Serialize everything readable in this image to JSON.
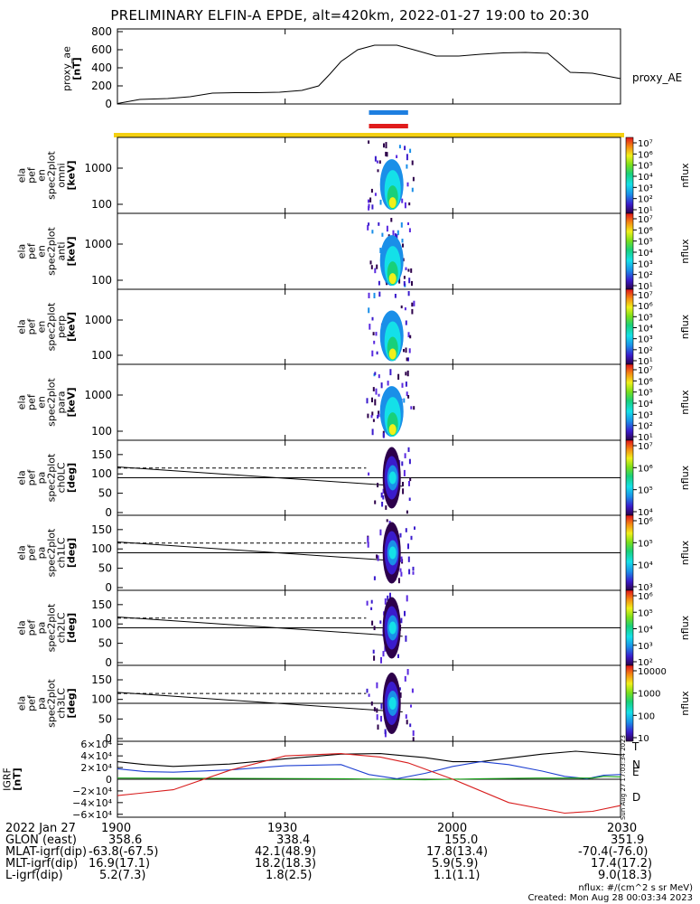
{
  "title": "PRELIMINARY ELFIN-A EPDE, alt=420km, 2022-01-27 19:00 to 20:30",
  "ae_panel": {
    "ylabel": [
      "proxy_ae",
      "[nT]"
    ],
    "yticks": [
      "800",
      "600",
      "400",
      "200",
      "0"
    ],
    "legend": "proxy_AE"
  },
  "spec_panels": [
    {
      "ylabel": [
        "ela",
        "pef",
        "en",
        "spec2plot",
        "omni",
        "[keV]"
      ],
      "yticks": [
        "1000",
        "100"
      ],
      "zlabel": "nflux",
      "zticks": [
        "10⁷",
        "10⁶",
        "10⁵",
        "10⁴",
        "10³",
        "10²",
        "10¹"
      ]
    },
    {
      "ylabel": [
        "ela",
        "pef",
        "en",
        "spec2plot",
        "anti",
        "[keV]"
      ],
      "yticks": [
        "1000",
        "100"
      ],
      "zlabel": "nflux",
      "zticks": [
        "10⁷",
        "10⁶",
        "10⁵",
        "10⁴",
        "10³",
        "10²",
        "10¹"
      ]
    },
    {
      "ylabel": [
        "ela",
        "pef",
        "en",
        "spec2plot",
        "perp",
        "[keV]"
      ],
      "yticks": [
        "1000",
        "100"
      ],
      "zlabel": "nflux",
      "zticks": [
        "10⁷",
        "10⁶",
        "10⁵",
        "10⁴",
        "10³",
        "10²",
        "10¹"
      ]
    },
    {
      "ylabel": [
        "ela",
        "pef",
        "en",
        "spec2plot",
        "para",
        "[keV]"
      ],
      "yticks": [
        "1000",
        "100"
      ],
      "zlabel": "nflux",
      "zticks": [
        "10⁷",
        "10⁶",
        "10⁵",
        "10⁴",
        "10³",
        "10²",
        "10¹"
      ]
    }
  ],
  "pa_panels": [
    {
      "ylabel": [
        "ela",
        "pef",
        "pa",
        "spec2plot",
        "ch0LC",
        "[deg]"
      ],
      "yticks": [
        "150",
        "100",
        "50",
        "0"
      ],
      "zlabel": "nflux",
      "zticks": [
        "10⁷",
        "10⁶",
        "10⁵",
        "10⁴"
      ]
    },
    {
      "ylabel": [
        "ela",
        "pef",
        "pa",
        "spec2plot",
        "ch1LC",
        "[deg]"
      ],
      "yticks": [
        "150",
        "100",
        "50",
        "0"
      ],
      "zlabel": "nflux",
      "zticks": [
        "10⁶",
        "10⁵",
        "10⁴",
        "10³"
      ]
    },
    {
      "ylabel": [
        "ela",
        "pef",
        "pa",
        "spec2plot",
        "ch2LC",
        "[deg]"
      ],
      "yticks": [
        "150",
        "100",
        "50",
        "0"
      ],
      "zlabel": "nflux",
      "zticks": [
        "10⁶",
        "10⁵",
        "10⁴",
        "10³",
        "10²"
      ]
    },
    {
      "ylabel": [
        "ela",
        "pef",
        "pa",
        "spec2plot",
        "ch3LC",
        "[deg]"
      ],
      "yticks": [
        "150",
        "100",
        "50",
        "0"
      ],
      "zlabel": "nflux",
      "zticks": [
        "10000",
        "1000",
        "100",
        "10"
      ]
    }
  ],
  "igrf_panel": {
    "ylabel": [
      "IGRF",
      "[nT]"
    ],
    "yticks": [
      "6×10⁴",
      "4×10⁴",
      "2×10⁴",
      "0",
      "−2×10⁴",
      "−4×10⁴",
      "−6×10⁴"
    ],
    "legend": [
      "T",
      "N",
      "E",
      "D"
    ],
    "legend_colors": [
      "#000000",
      "#1d3fd1",
      "#17a317",
      "#d81d1d"
    ],
    "side_stamp": "Sun Aug 27 17:03:34 2023"
  },
  "footer": {
    "date": "2022 Jan 27",
    "rows": [
      "GLON (east)",
      "MLAT-igrf(dip)",
      "MLT-igrf(dip)",
      "L-igrf(dip)"
    ],
    "time_ticks": [
      "1900",
      "1930",
      "2000",
      "2030"
    ],
    "columns": [
      [
        "358.6",
        "-63.8(-67.5)",
        "16.9(17.1)",
        "5.2(7.3)"
      ],
      [
        "338.4",
        "42.1(48.9)",
        "18.2(18.3)",
        "1.8(2.5)"
      ],
      [
        "155.0",
        "17.8(13.4)",
        "5.9(5.9)",
        "1.1(1.1)"
      ],
      [
        "351.9",
        "-70.4(-76.0)",
        "17.4(17.2)",
        "9.0(18.3)"
      ]
    ],
    "unit_note": "nflux: #/(cm^2 s sr MeV)",
    "created": "Created: Mon Aug 28 00:03:34 2023"
  },
  "chart_data": {
    "type": "line",
    "x_unit": "minutes after 19:00 UT",
    "xlim": [
      0,
      90
    ],
    "xticks": [
      "1900",
      "1930",
      "2000",
      "2030"
    ],
    "series": [
      {
        "name": "proxy_AE",
        "x": [
          0,
          4,
          9,
          13,
          17,
          21,
          25,
          29,
          33,
          36,
          38,
          40,
          43,
          46,
          50,
          53,
          57,
          61,
          65,
          69,
          73,
          77,
          81,
          85,
          90
        ],
        "y": [
          5,
          50,
          60,
          80,
          120,
          125,
          125,
          130,
          150,
          200,
          330,
          470,
          600,
          650,
          650,
          600,
          530,
          530,
          550,
          565,
          570,
          560,
          350,
          340,
          280
        ]
      },
      {
        "name": "T",
        "x": [
          0,
          5,
          10,
          20,
          30,
          40,
          47,
          55,
          60,
          65,
          70,
          76,
          82,
          90
        ],
        "y": [
          30000,
          25000,
          22000,
          26000,
          35000,
          43000,
          44000,
          37000,
          30000,
          30000,
          36000,
          43000,
          48000,
          42000
        ]
      },
      {
        "name": "N",
        "x": [
          0,
          5,
          10,
          20,
          30,
          40,
          45,
          50,
          55,
          60,
          65,
          70,
          76,
          80,
          84,
          87,
          90
        ],
        "y": [
          18000,
          13000,
          12000,
          16000,
          23000,
          25000,
          8000,
          1000,
          10000,
          22000,
          30000,
          25000,
          14000,
          5000,
          1000,
          7000,
          8000
        ]
      },
      {
        "name": "E",
        "x": [
          0,
          20,
          40,
          47,
          55,
          65,
          75,
          85,
          87,
          90
        ],
        "y": [
          2000,
          1500,
          1000,
          0,
          -1000,
          1000,
          2000,
          2000,
          5000,
          4000
        ]
      },
      {
        "name": "D",
        "x": [
          0,
          4,
          10,
          20,
          30,
          40,
          47,
          52,
          60,
          70,
          80,
          85,
          90
        ],
        "y": [
          -28000,
          -24000,
          -18000,
          15000,
          40000,
          44000,
          38000,
          28000,
          0,
          -40000,
          -58000,
          -55000,
          -45000
        ]
      }
    ],
    "orbit_bars": [
      {
        "color": "#1e7fe0",
        "x": [
          45,
          52
        ]
      },
      {
        "color": "#e01c1c",
        "x": [
          45,
          52
        ]
      }
    ],
    "spectrogram_window_minutes": [
      44.5,
      53
    ]
  }
}
